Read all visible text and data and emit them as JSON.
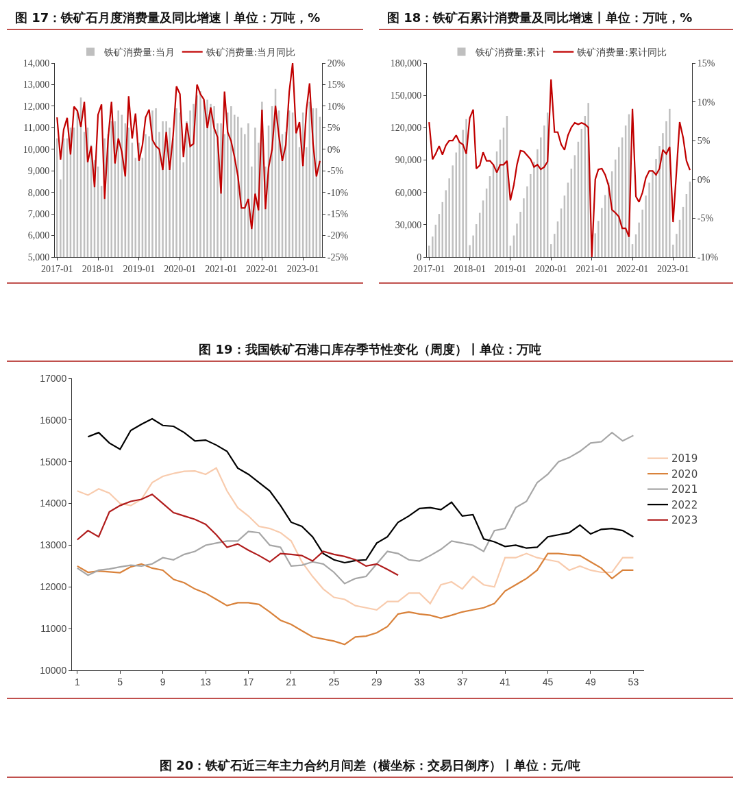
{
  "chart_data": [
    {
      "type": "bar",
      "title": "图 17：铁矿石月度消费量及同比增速丨单位：万吨，%",
      "legend": "top",
      "x": [
        "2017-01",
        "2017-02",
        "2017-03",
        "2017-04",
        "2017-05",
        "2017-06",
        "2017-07",
        "2017-08",
        "2017-09",
        "2017-10",
        "2017-11",
        "2017-12",
        "2018-01",
        "2018-02",
        "2018-03",
        "2018-04",
        "2018-05",
        "2018-06",
        "2018-07",
        "2018-08",
        "2018-09",
        "2018-10",
        "2018-11",
        "2018-12",
        "2019-01",
        "2019-02",
        "2019-03",
        "2019-04",
        "2019-05",
        "2019-06",
        "2019-07",
        "2019-08",
        "2019-09",
        "2019-10",
        "2019-11",
        "2019-12",
        "2020-01",
        "2020-02",
        "2020-03",
        "2020-04",
        "2020-05",
        "2020-06",
        "2020-07",
        "2020-08",
        "2020-09",
        "2020-10",
        "2020-11",
        "2020-12",
        "2021-01",
        "2021-02",
        "2021-03",
        "2021-04",
        "2021-05",
        "2021-06",
        "2021-07",
        "2021-08",
        "2021-09",
        "2021-10",
        "2021-11",
        "2021-12",
        "2022-01",
        "2022-02",
        "2022-03",
        "2022-04",
        "2022-05",
        "2022-06",
        "2022-07",
        "2022-08",
        "2022-09",
        "2022-10",
        "2022-11",
        "2022-12",
        "2023-01",
        "2023-02",
        "2023-03",
        "2023-04",
        "2023-05",
        "2023-06"
      ],
      "xlim": [
        "2016-12-12",
        "2023-06-20"
      ],
      "xticks": [
        {
          "value": "2017-01",
          "label": "2017-01"
        },
        {
          "value": "2018-01",
          "label": "2018-01"
        },
        {
          "value": "2019-01",
          "label": "2019-01"
        },
        {
          "value": "2020-01",
          "label": "2020-01"
        },
        {
          "value": "2021-01",
          "label": "2021-01"
        },
        {
          "value": "2022-01",
          "label": "2022-01"
        },
        {
          "value": "2023-01",
          "label": "2023-01"
        }
      ],
      "ylim": [
        5000,
        14000
      ],
      "yticks": [
        {
          "value": 5000,
          "label": "5,000"
        },
        {
          "value": 6000,
          "label": "6,000"
        },
        {
          "value": 7000,
          "label": "7,000"
        },
        {
          "value": 8000,
          "label": "8,000"
        },
        {
          "value": 9000,
          "label": "9,000"
        },
        {
          "value": 10000,
          "label": "10,000"
        },
        {
          "value": 11000,
          "label": "11,000"
        },
        {
          "value": 12000,
          "label": "12,000"
        },
        {
          "value": 13000,
          "label": "13,000"
        },
        {
          "value": 14000,
          "label": "14,000"
        }
      ],
      "y2lim": [
        -25,
        20
      ],
      "y2ticks": [
        {
          "value": -25,
          "label": "-25%"
        },
        {
          "value": -20,
          "label": "-20%"
        },
        {
          "value": -15,
          "label": "-15%"
        },
        {
          "value": -10,
          "label": "-10%"
        },
        {
          "value": -5,
          "label": "-5%"
        },
        {
          "value": 0,
          "label": "0%"
        },
        {
          "value": 5,
          "label": "5%"
        },
        {
          "value": 10,
          "label": "10%"
        },
        {
          "value": 15,
          "label": "15%"
        },
        {
          "value": 20,
          "label": "20%"
        }
      ],
      "series": [
        {
          "name": "铁矿消费量:当月",
          "color": "#bfbfbf",
          "values": [
            10500,
            8600,
            10500,
            10500,
            11000,
            11000,
            11800,
            12400,
            10800,
            11000,
            10200,
            9500,
            9200,
            8300,
            10500,
            10700,
            11300,
            11300,
            11800,
            11600,
            11200,
            11000,
            10300,
            9600,
            10300,
            9600,
            10700,
            10600,
            11800,
            11900,
            10800,
            11300,
            11300,
            11000,
            10500,
            11900,
            11700,
            9400,
            11300,
            11800,
            12100,
            12500,
            12700,
            12300,
            12300,
            12100,
            12000,
            11200,
            11200,
            10700,
            11700,
            12000,
            11600,
            11500,
            11000,
            10700,
            11200,
            9200,
            11000,
            10300,
            12200,
            9200,
            11100,
            12000,
            12800,
            11800,
            10700,
            10800,
            11800,
            11700,
            11000,
            10100,
            11700,
            10100,
            12200,
            11900,
            11900,
            11500
          ]
        },
        {
          "name": "铁矿消费量:当月同比",
          "type": "line",
          "axis": "y2",
          "color": "#c00000",
          "values": [
            7.4,
            -2.4,
            4.6,
            7.3,
            -1.2,
            9.9,
            8.9,
            5.2,
            11,
            -3,
            0.7,
            -8.8,
            8,
            10.4,
            -11.5,
            2.5,
            11,
            -3.3,
            2.5,
            -0.6,
            -6.3,
            12.3,
            2.5,
            8.3,
            -2.7,
            1,
            7.4,
            9.2,
            2.2,
            0.7,
            0,
            -4.8,
            4,
            -4.8,
            3.1,
            14.6,
            12.8,
            -1.8,
            6.1,
            0.7,
            1.3,
            15,
            12.8,
            11.6,
            4.9,
            9.7,
            4.9,
            2.8,
            -10.3,
            13.4,
            4,
            1.9,
            -1.8,
            -6.3,
            -13.6,
            -13.6,
            -11.5,
            -18.5,
            -10.3,
            -14.2,
            9.2,
            -13.9,
            -4.2,
            0,
            10.1,
            3.1,
            -2.7,
            1,
            13.4,
            20,
            3.7,
            6.3,
            -3.9,
            9.2,
            15.3,
            1.3,
            -6.3,
            -2.7
          ]
        }
      ]
    },
    {
      "type": "bar",
      "title": "图 18：铁矿石累计消费量及同比增速丨单位：万吨，%",
      "legend": "top",
      "x": [
        "2017-01",
        "2017-02",
        "2017-03",
        "2017-04",
        "2017-05",
        "2017-06",
        "2017-07",
        "2017-08",
        "2017-09",
        "2017-10",
        "2017-11",
        "2017-12",
        "2018-01",
        "2018-02",
        "2018-03",
        "2018-04",
        "2018-05",
        "2018-06",
        "2018-07",
        "2018-08",
        "2018-09",
        "2018-10",
        "2018-11",
        "2018-12",
        "2019-01",
        "2019-02",
        "2019-03",
        "2019-04",
        "2019-05",
        "2019-06",
        "2019-07",
        "2019-08",
        "2019-09",
        "2019-10",
        "2019-11",
        "2019-12",
        "2020-01",
        "2020-02",
        "2020-03",
        "2020-04",
        "2020-05",
        "2020-06",
        "2020-07",
        "2020-08",
        "2020-09",
        "2020-10",
        "2020-11",
        "2020-12",
        "2021-01",
        "2021-02",
        "2021-03",
        "2021-04",
        "2021-05",
        "2021-06",
        "2021-07",
        "2021-08",
        "2021-09",
        "2021-10",
        "2021-11",
        "2021-12",
        "2022-01",
        "2022-02",
        "2022-03",
        "2022-04",
        "2022-05",
        "2022-06",
        "2022-07",
        "2022-08",
        "2022-09",
        "2022-10",
        "2022-11",
        "2022-12",
        "2023-01",
        "2023-02",
        "2023-03",
        "2023-04",
        "2023-05",
        "2023-06"
      ],
      "xlim": [
        "2016-12-12",
        "2023-06-20"
      ],
      "xticks": [
        {
          "value": "2017-01",
          "label": "2017-01"
        },
        {
          "value": "2018-01",
          "label": "2018-01"
        },
        {
          "value": "2019-01",
          "label": "2019-01"
        },
        {
          "value": "2020-01",
          "label": "2020-01"
        },
        {
          "value": "2021-01",
          "label": "2021-01"
        },
        {
          "value": "2022-01",
          "label": "2022-01"
        },
        {
          "value": "2023-01",
          "label": "2023-01"
        }
      ],
      "ylim": [
        0,
        180000
      ],
      "yticks": [
        0,
        {
          "value": 30000,
          "label": "30,000"
        },
        {
          "value": 60000,
          "label": "60,000"
        },
        {
          "value": 90000,
          "label": "90,000"
        },
        {
          "value": 120000,
          "label": "120,000"
        },
        {
          "value": 150000,
          "label": "150,000"
        },
        {
          "value": 180000,
          "label": "180,000"
        }
      ],
      "y2lim": [
        -10,
        15
      ],
      "y2ticks": [
        {
          "value": -10,
          "label": "-10%"
        },
        {
          "value": -5,
          "label": "-5%"
        },
        {
          "value": 0,
          "label": "0%"
        },
        {
          "value": 5,
          "label": "5%"
        },
        {
          "value": 10,
          "label": "10%"
        },
        {
          "value": 15,
          "label": "15%"
        }
      ],
      "series": [
        {
          "name": "铁矿消费量:累计",
          "color": "#bfbfbf",
          "values": [
            10500,
            19000,
            30000,
            40000,
            51000,
            62000,
            73000,
            85000,
            97000,
            107000,
            118000,
            128000,
            11000,
            20000,
            30500,
            41000,
            52500,
            63500,
            75000,
            86500,
            98000,
            109000,
            120000,
            131000,
            10500,
            20000,
            31000,
            42000,
            54500,
            65500,
            77000,
            88500,
            100000,
            111000,
            122000,
            134000,
            12000,
            21500,
            33000,
            45000,
            57000,
            69000,
            82000,
            94500,
            107000,
            119000,
            131000,
            143000,
            null,
            22000,
            33500,
            45500,
            57500,
            69000,
            79500,
            90500,
            102000,
            111000,
            122000,
            132500,
            12000,
            21000,
            32000,
            44000,
            57000,
            69000,
            80000,
            91000,
            103000,
            115000,
            126000,
            137500,
            11500,
            21500,
            34500,
            46500,
            58500,
            70000
          ]
        },
        {
          "name": "铁矿消费量:累计同比",
          "type": "line",
          "axis": "y2",
          "color": "#c00000",
          "values": [
            7.4,
            2.6,
            3.3,
            4.3,
            3.2,
            4.4,
            5,
            5,
            5.7,
            4.8,
            4.5,
            3.3,
            7.9,
            9,
            1.4,
            1.8,
            3.5,
            2.4,
            2.4,
            1.9,
            0.9,
            1.9,
            1.9,
            2.4,
            -2.7,
            -0.7,
            1.9,
            3.7,
            3.6,
            3.1,
            2.6,
            1.6,
            1.9,
            1.3,
            1.6,
            2.3,
            12.9,
            6.1,
            6.1,
            4.5,
            3.8,
            5.7,
            6.7,
            7.3,
            7.1,
            7.3,
            7.1,
            6.7,
            -10,
            0,
            1.3,
            1.4,
            0.6,
            -0.8,
            -3.9,
            -4.3,
            -4.8,
            -6.3,
            -6.3,
            -7.4,
            9.1,
            -2.2,
            -2.9,
            -1.7,
            0.2,
            1.1,
            1.1,
            0.6,
            1.4,
            3.8,
            3.3,
            4.2,
            -5.5,
            1.2,
            7.4,
            5.4,
            2.4,
            1.2
          ]
        }
      ]
    },
    {
      "type": "line",
      "title": "图 19：我国铁矿石港口库存季节性变化（周度）丨单位：万吨",
      "legend": "right",
      "x": [
        1,
        2,
        3,
        4,
        5,
        6,
        7,
        8,
        9,
        10,
        11,
        12,
        13,
        14,
        15,
        16,
        17,
        18,
        19,
        20,
        21,
        22,
        23,
        24,
        25,
        26,
        27,
        28,
        29,
        30,
        31,
        32,
        33,
        34,
        35,
        36,
        37,
        38,
        39,
        40,
        41,
        42,
        43,
        44,
        45,
        46,
        47,
        48,
        49,
        50,
        51,
        52,
        53
      ],
      "xlim": [
        0.5,
        54
      ],
      "xticks": [
        1,
        5,
        9,
        13,
        17,
        21,
        25,
        29,
        33,
        37,
        41,
        45,
        49,
        53
      ],
      "ylim": [
        10000,
        17000
      ],
      "yticks": [
        10000,
        11000,
        12000,
        13000,
        14000,
        15000,
        16000,
        17000
      ],
      "series": [
        {
          "name": "2019",
          "color": "#f8cbad",
          "values": [
            14300,
            14200,
            14350,
            14250,
            14000,
            13950,
            14100,
            14500,
            14650,
            14720,
            14770,
            14780,
            14700,
            14850,
            14300,
            13900,
            13700,
            13450,
            13400,
            13300,
            13100,
            12600,
            12250,
            11950,
            11750,
            11700,
            11550,
            11500,
            11450,
            11650,
            11650,
            11850,
            11850,
            11600,
            12050,
            12120,
            11950,
            12250,
            12050,
            12000,
            12700,
            12700,
            12800,
            12700,
            12650,
            12600,
            12400,
            12500,
            12400,
            12350,
            12350,
            12700,
            12700
          ]
        },
        {
          "name": "2020",
          "color": "#d9823b",
          "values": [
            12500,
            12350,
            12380,
            12360,
            12340,
            12480,
            12550,
            12450,
            12400,
            12180,
            12100,
            11950,
            11850,
            11700,
            11550,
            11620,
            11620,
            11580,
            11400,
            11200,
            11100,
            10950,
            10800,
            10750,
            10700,
            10620,
            10800,
            10820,
            10900,
            11050,
            11350,
            11400,
            11350,
            11320,
            11250,
            11320,
            11400,
            11450,
            11500,
            11600,
            11900,
            12050,
            12200,
            12400,
            12800,
            12800,
            12770,
            12750,
            12600,
            12450,
            12200,
            12400,
            12400
          ]
        },
        {
          "name": "2021",
          "color": "#a6a6a6",
          "values": [
            12450,
            12280,
            12400,
            12430,
            12480,
            12520,
            12500,
            12550,
            12700,
            12650,
            12780,
            12850,
            13000,
            13050,
            13100,
            13100,
            13330,
            13300,
            13000,
            12950,
            12500,
            12520,
            12600,
            12550,
            12350,
            12080,
            12200,
            12250,
            12550,
            12850,
            12800,
            12650,
            12620,
            12750,
            12900,
            13100,
            13050,
            13000,
            12850,
            13350,
            13400,
            13900,
            14050,
            14500,
            14700,
            15000,
            15100,
            15250,
            15450,
            15480,
            15700,
            15500,
            15630
          ]
        },
        {
          "name": "2022",
          "color": "#000000",
          "x": [
            2,
            3,
            4,
            5,
            6,
            7,
            8,
            9,
            10,
            11,
            12,
            13,
            14,
            15,
            16,
            17,
            18,
            19,
            20,
            21,
            22,
            23,
            24,
            25,
            26,
            27,
            28,
            29,
            30,
            31,
            32,
            33,
            34,
            35,
            36,
            37,
            38,
            39,
            40,
            41,
            42,
            43,
            44,
            45,
            46,
            47,
            48,
            49,
            50,
            51,
            52,
            53
          ],
          "values": [
            15600,
            15700,
            15450,
            15300,
            15750,
            15900,
            16030,
            15870,
            15850,
            15700,
            15500,
            15520,
            15400,
            15250,
            14850,
            14700,
            14500,
            14300,
            13950,
            13550,
            13450,
            13200,
            12800,
            12650,
            12580,
            12630,
            12650,
            13050,
            13200,
            13550,
            13700,
            13880,
            13900,
            13850,
            14030,
            13700,
            13730,
            13150,
            13080,
            12970,
            13000,
            12930,
            12950,
            13200,
            13250,
            13300,
            13480,
            13270,
            13380,
            13400,
            13350,
            13200
          ]
        },
        {
          "name": "2023",
          "color": "#b01c1c",
          "x": [
            1,
            2,
            3,
            4,
            5,
            6,
            7,
            8,
            9,
            10,
            11,
            12,
            13,
            14,
            15,
            16,
            17,
            18,
            19,
            20,
            21,
            22,
            23,
            24,
            25,
            26,
            27,
            28,
            29,
            30,
            31
          ],
          "values": [
            13130,
            13350,
            13200,
            13800,
            13950,
            14050,
            14100,
            14220,
            14000,
            13780,
            13700,
            13620,
            13500,
            13250,
            12950,
            13030,
            12880,
            12750,
            12600,
            12800,
            12780,
            12750,
            12620,
            12850,
            12780,
            12730,
            12650,
            12500,
            12550,
            12420,
            12280
          ]
        }
      ]
    },
    {
      "type": "other",
      "title": "图 20：铁矿石近三年主力合约月间差（横坐标：交易日倒序）丨单位：元/吨"
    }
  ]
}
